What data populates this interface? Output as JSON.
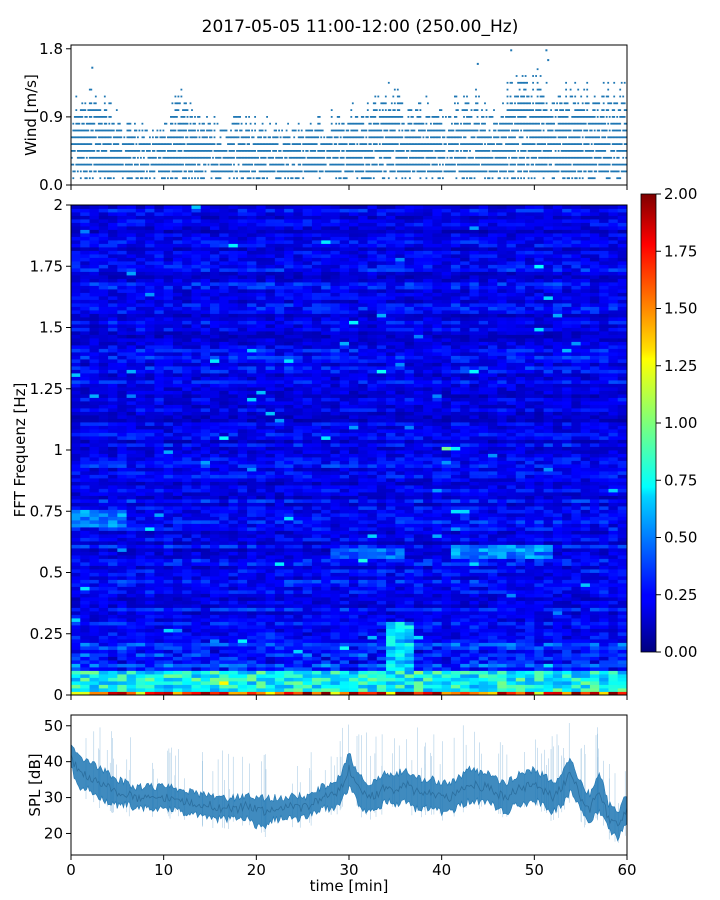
{
  "title": "2017-05-05 11:00-12:00 (250.00_Hz)",
  "colors": {
    "series": "#1f77b4",
    "colormap": "jet",
    "axes": "#000000"
  },
  "chart_data": [
    {
      "type": "scatter",
      "ylabel": "Wind [m/s]",
      "xlim": [
        0,
        60
      ],
      "ylim": [
        0,
        1.85
      ],
      "yticks": [
        0.0,
        0.9,
        1.8
      ],
      "ytick_labels": [
        "0.0",
        "0.9",
        "1.8"
      ],
      "xticks": [
        0,
        10,
        20,
        30,
        40,
        50,
        60
      ],
      "y_resolution": 0.09,
      "ceiling_profile": {
        "x": [
          0,
          3,
          6,
          9,
          12,
          14,
          18,
          22,
          26,
          30,
          34,
          36,
          40,
          44,
          46,
          48,
          50,
          52,
          54,
          56,
          58,
          60
        ],
        "y": [
          1.1,
          1.3,
          0.9,
          0.8,
          1.3,
          0.95,
          1.0,
          0.85,
          0.9,
          1.0,
          1.4,
          1.2,
          1.1,
          1.3,
          1.0,
          1.6,
          1.5,
          1.3,
          1.4,
          1.3,
          1.35,
          1.4
        ]
      },
      "outlier_points": [
        {
          "x": 2.3,
          "y": 1.55
        },
        {
          "x": 43.9,
          "y": 1.6
        },
        {
          "x": 47.5,
          "y": 1.78
        },
        {
          "x": 51.3,
          "y": 1.78
        },
        {
          "x": 51.5,
          "y": 1.65
        }
      ]
    },
    {
      "type": "heatmap",
      "ylabel": "FFT Frequenz [Hz]",
      "xlim": [
        0,
        60
      ],
      "ylim": [
        0,
        2
      ],
      "yticks": [
        0,
        0.25,
        0.5,
        0.75,
        1,
        1.25,
        1.5,
        1.75,
        2
      ],
      "ytick_labels": [
        "0",
        "0.25",
        "0.5",
        "0.75",
        "1",
        "1.25",
        "1.5",
        "1.75",
        "2"
      ],
      "xticks": [
        0,
        10,
        20,
        30,
        40,
        50,
        60
      ],
      "colormap": "jet",
      "clim": [
        0,
        2
      ],
      "colorbar_ticks": [
        0,
        0.25,
        0.5,
        0.75,
        1,
        1.25,
        1.5,
        1.75,
        2
      ],
      "colorbar_tick_labels": [
        "0.00",
        "0.25",
        "0.50",
        "0.75",
        "1.00",
        "1.25",
        "1.50",
        "1.75",
        "2.00"
      ],
      "background_level": 0.22,
      "features": [
        {
          "x": [
            0,
            6
          ],
          "y": [
            0.68,
            0.76
          ],
          "value": 0.6
        },
        {
          "x": [
            28,
            36
          ],
          "y": [
            0.55,
            0.6
          ],
          "value": 0.55
        },
        {
          "x": [
            41,
            52
          ],
          "y": [
            0.55,
            0.62
          ],
          "value": 0.6
        },
        {
          "x": [
            34,
            37
          ],
          "y": [
            0.1,
            0.3
          ],
          "value": 0.75
        },
        {
          "x": [
            40.5,
            42
          ],
          "y": [
            1.0,
            1.02
          ],
          "value": 0.9
        },
        {
          "x": [
            0,
            60
          ],
          "y": [
            0,
            0.1
          ],
          "value": 0.9
        },
        {
          "x": [
            0,
            60
          ],
          "y": [
            0,
            0.02
          ],
          "value": 1.9
        }
      ]
    },
    {
      "type": "area",
      "ylabel": "SPL [dB]",
      "xlabel": "time [min]",
      "xlim": [
        0,
        60
      ],
      "ylim": [
        14,
        53
      ],
      "yticks": [
        20,
        30,
        40,
        50
      ],
      "ytick_labels": [
        "20",
        "30",
        "40",
        "50"
      ],
      "xticks": [
        0,
        10,
        20,
        30,
        40,
        50,
        60
      ],
      "xtick_labels": [
        "0",
        "10",
        "20",
        "30",
        "40",
        "50",
        "60"
      ],
      "x": [
        0,
        1,
        2,
        3,
        4,
        5,
        6,
        7,
        8,
        9,
        10,
        11,
        12,
        13,
        14,
        15,
        16,
        17,
        18,
        19,
        20,
        21,
        22,
        23,
        24,
        25,
        26,
        27,
        28,
        29,
        30,
        31,
        32,
        33,
        34,
        35,
        36,
        37,
        38,
        39,
        40,
        41,
        42,
        43,
        44,
        45,
        46,
        47,
        48,
        49,
        50,
        51,
        52,
        53,
        54,
        55,
        56,
        57,
        58,
        59,
        60
      ],
      "mean": [
        41,
        37,
        36,
        34,
        33,
        31,
        31,
        30,
        30,
        30,
        30,
        30,
        29,
        29,
        28,
        28,
        27,
        27,
        27,
        28,
        27,
        26,
        27,
        27,
        28,
        27,
        28,
        30,
        31,
        32,
        38,
        33,
        30,
        31,
        33,
        32,
        34,
        32,
        31,
        31,
        30,
        30,
        32,
        34,
        33,
        33,
        31,
        30,
        32,
        33,
        34,
        32,
        30,
        33,
        37,
        30,
        27,
        32,
        24,
        22,
        27
      ],
      "low": [
        38,
        33,
        32,
        30,
        29,
        28,
        28,
        27,
        27,
        27,
        27,
        27,
        26,
        26,
        25,
        24,
        24,
        24,
        24,
        24,
        22,
        22,
        24,
        24,
        24,
        24,
        25,
        27,
        27,
        28,
        33,
        28,
        26,
        27,
        29,
        28,
        29,
        27,
        27,
        27,
        26,
        26,
        28,
        29,
        29,
        29,
        27,
        26,
        28,
        28,
        29,
        28,
        26,
        28,
        32,
        26,
        23,
        27,
        21,
        19,
        23
      ],
      "high": [
        45,
        41,
        40,
        38,
        37,
        35,
        34,
        33,
        33,
        33,
        33,
        33,
        32,
        32,
        31,
        31,
        30,
        30,
        30,
        31,
        30,
        30,
        30,
        30,
        31,
        30,
        31,
        33,
        34,
        36,
        42,
        37,
        34,
        35,
        37,
        36,
        38,
        36,
        35,
        35,
        34,
        34,
        36,
        38,
        37,
        37,
        35,
        34,
        36,
        37,
        38,
        36,
        34,
        37,
        41,
        34,
        31,
        37,
        28,
        26,
        31
      ]
    }
  ]
}
